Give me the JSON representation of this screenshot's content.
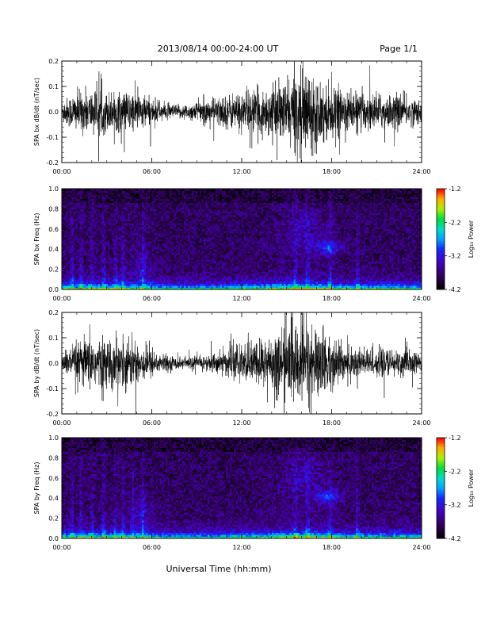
{
  "header": {
    "title": "2013/08/14  00:00-24:00 UT",
    "page": "Page 1/1"
  },
  "footer": {
    "xlabel": "Universal Time (hh:mm)"
  },
  "chart_data": [
    {
      "type": "line",
      "ylabel": "SPA bx dB/dt (nT/sec)",
      "xlim": [
        "00:00",
        "24:00"
      ],
      "ylim": [
        -0.2,
        0.2
      ],
      "x_ticks": [
        "00:00",
        "06:00",
        "12:00",
        "18:00",
        "24:00"
      ],
      "y_ticks": [
        "-0.2",
        "-0.1",
        "0.0",
        "0.1",
        "0.2"
      ],
      "y_tick_values": [
        -0.2,
        -0.1,
        0.0,
        0.1,
        0.2
      ],
      "amplitude_envelope": {
        "hours": [
          0,
          1,
          2,
          3,
          4,
          5,
          6,
          7,
          8,
          9,
          10,
          11,
          12,
          13,
          14,
          15,
          16,
          17,
          18,
          19,
          20,
          21,
          22,
          23,
          24
        ],
        "values": [
          0.05,
          0.09,
          0.1,
          0.09,
          0.09,
          0.09,
          0.06,
          0.035,
          0.03,
          0.045,
          0.06,
          0.075,
          0.09,
          0.1,
          0.11,
          0.14,
          0.2,
          0.15,
          0.11,
          0.095,
          0.085,
          0.08,
          0.075,
          0.07,
          0.05
        ]
      },
      "line_color": "#000000"
    },
    {
      "type": "heatmap",
      "ylabel": "SPA bx Freq (Hz)",
      "xlim": [
        "00:00",
        "24:00"
      ],
      "ylim": [
        0.0,
        1.0
      ],
      "x_ticks": [
        "00:00",
        "06:00",
        "12:00",
        "18:00",
        "24:00"
      ],
      "y_ticks": [
        "0.0",
        "0.2",
        "0.4",
        "0.6",
        "0.8",
        "1.0"
      ],
      "y_tick_values": [
        0.0,
        0.2,
        0.4,
        0.6,
        0.8,
        1.0
      ],
      "colorbar": {
        "label": "Log₁₀ Power",
        "range": [
          -4.2,
          -1.2
        ],
        "ticks": [
          "-1.2",
          "-2.2",
          "-3.2",
          "-4.2"
        ],
        "tick_values": [
          -1.2,
          -2.2,
          -3.2,
          -4.2
        ]
      },
      "vertical_streaks_hours": [
        0.7,
        1.3,
        2.0,
        2.8,
        3.6,
        4.1,
        5.4,
        15.6,
        16.4,
        17.9,
        19.7
      ]
    },
    {
      "type": "line",
      "ylabel": "SPA by dB/dt (nT/sec)",
      "xlim": [
        "00:00",
        "24:00"
      ],
      "ylim": [
        -0.2,
        0.2
      ],
      "x_ticks": [
        "00:00",
        "06:00",
        "12:00",
        "18:00",
        "24:00"
      ],
      "y_ticks": [
        "-0.2",
        "-0.1",
        "0.0",
        "0.1",
        "0.2"
      ],
      "y_tick_values": [
        -0.2,
        -0.1,
        0.0,
        0.1,
        0.2
      ],
      "amplitude_envelope": {
        "hours": [
          0,
          1,
          2,
          3,
          4,
          5,
          6,
          7,
          8,
          9,
          10,
          11,
          12,
          13,
          14,
          15,
          16,
          17,
          18,
          19,
          20,
          21,
          22,
          23,
          24
        ],
        "values": [
          0.04,
          0.09,
          0.12,
          0.1,
          0.11,
          0.1,
          0.06,
          0.035,
          0.025,
          0.03,
          0.04,
          0.06,
          0.08,
          0.1,
          0.13,
          0.16,
          0.2,
          0.16,
          0.11,
          0.08,
          0.07,
          0.06,
          0.06,
          0.06,
          0.04
        ]
      },
      "line_color": "#000000"
    },
    {
      "type": "heatmap",
      "ylabel": "SPA by Freq (Hz)",
      "xlim": [
        "00:00",
        "24:00"
      ],
      "ylim": [
        0.0,
        1.0
      ],
      "x_ticks": [
        "00:00",
        "06:00",
        "12:00",
        "18:00",
        "24:00"
      ],
      "y_ticks": [
        "0.0",
        "0.2",
        "0.4",
        "0.6",
        "0.8",
        "1.0"
      ],
      "y_tick_values": [
        0.0,
        0.2,
        0.4,
        0.6,
        0.8,
        1.0
      ],
      "colorbar": {
        "label": "Log₁₀ Power",
        "range": [
          -4.2,
          -1.2
        ],
        "ticks": [
          "-1.2",
          "-2.2",
          "-3.2",
          "-4.2"
        ],
        "tick_values": [
          -1.2,
          -2.2,
          -3.2,
          -4.2
        ]
      },
      "vertical_streaks_hours": [
        0.7,
        1.3,
        2.0,
        2.8,
        3.6,
        4.1,
        4.7,
        5.4,
        15.6,
        16.4,
        17.9,
        19.7
      ]
    }
  ]
}
